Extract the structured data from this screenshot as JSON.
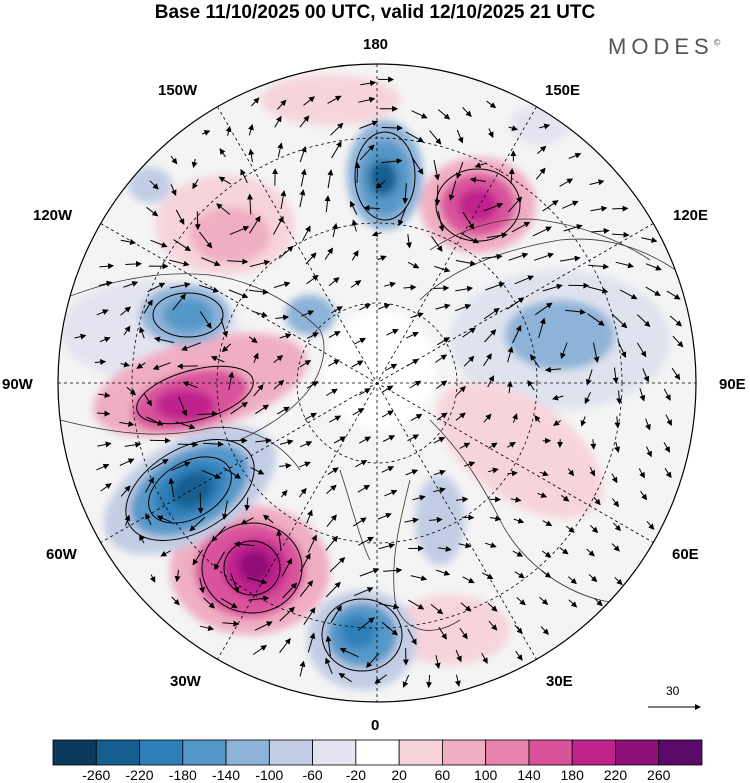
{
  "header": {
    "title": "Base 11/10/2025 00 UTC, valid 12/10/2025 21 UTC",
    "brand": "MODES",
    "brand_mark": "©"
  },
  "map": {
    "projection": "north-polar-stereographic",
    "field": "geopotential height anomaly with wind vectors",
    "longitude_labels": [
      "180",
      "150E",
      "120E",
      "90E",
      "60E",
      "30E",
      "0",
      "30W",
      "60W",
      "90W",
      "120W",
      "150W"
    ],
    "reference_vector": "30"
  },
  "colorbar": {
    "labels": [
      "-260",
      "-220",
      "-180",
      "-140",
      "-100",
      "-60",
      "-20",
      "20",
      "60",
      "100",
      "140",
      "180",
      "220",
      "260"
    ],
    "colors": [
      "#0b3a5c",
      "#145f8f",
      "#2e7fb8",
      "#5597c8",
      "#8eb3d8",
      "#c2cde5",
      "#e3e4f0",
      "#ffffff",
      "#f7d4dc",
      "#f0aec2",
      "#e882ae",
      "#d9529c",
      "#c0238d",
      "#8f1078",
      "#5b0a69"
    ]
  }
}
